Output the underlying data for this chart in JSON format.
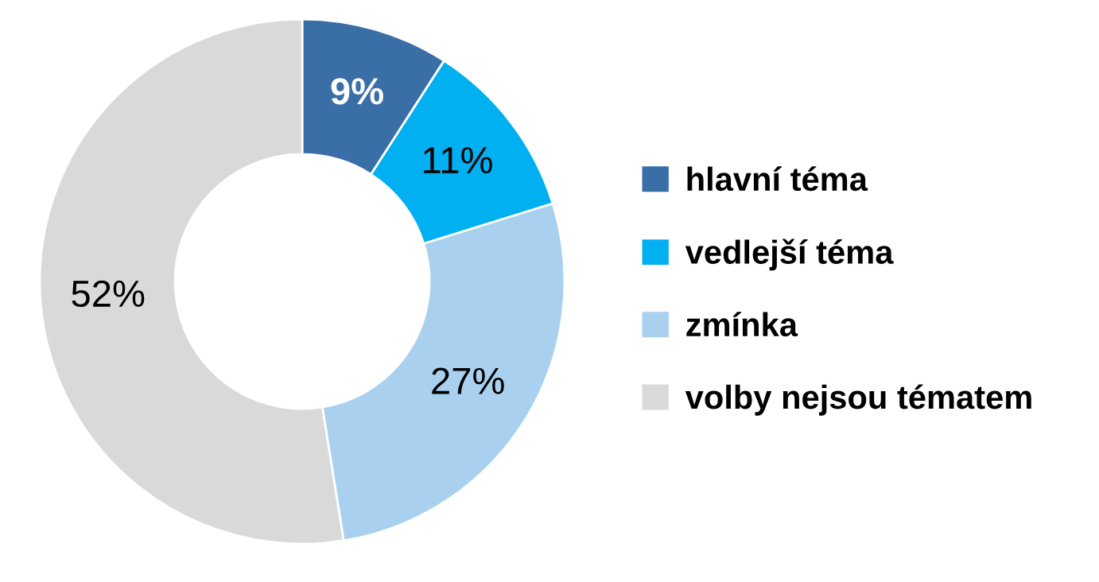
{
  "chart_data": {
    "type": "donut",
    "categories": [
      "hlavní téma",
      "vedlejší téma",
      "zmínka",
      "volby nejsou tématem"
    ],
    "values": [
      9,
      11,
      27,
      52
    ],
    "colors": [
      "#3a6ea6",
      "#00b0f0",
      "#a9d1ef",
      "#d9d9d9"
    ],
    "value_labels": [
      "9%",
      "11%",
      "27%",
      "52%"
    ],
    "legend": "right"
  }
}
